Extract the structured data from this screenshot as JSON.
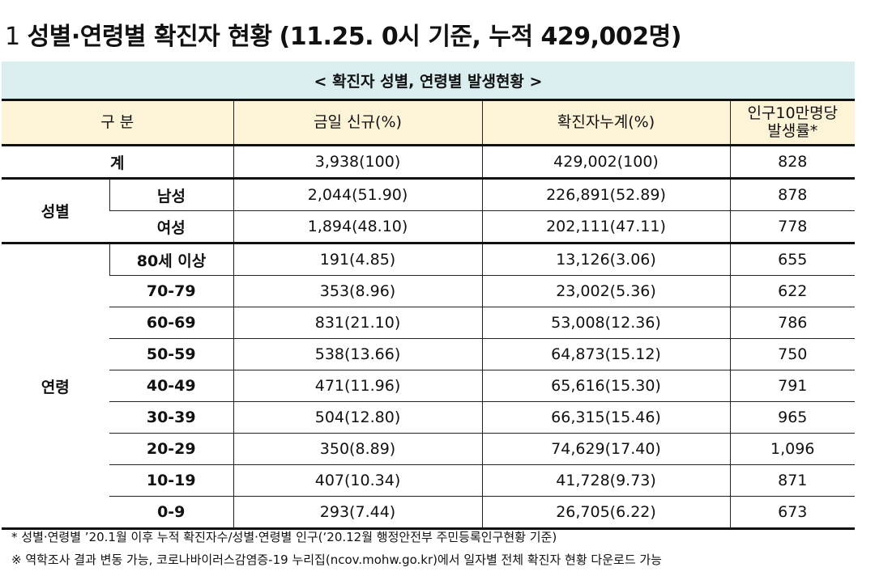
{
  "title": {
    "number": "1",
    "main": "성별·연령별 확진자 현황",
    "basis": "(11.25. 0시 기준, 누적 429,002명)"
  },
  "caption": "< 확진자 성별, 연령별 발생현황 >",
  "headers": {
    "category": "구 분",
    "today": "금일 신규(%)",
    "cumulative": "확진자누계(%)",
    "rate_line1": "인구10만명당",
    "rate_line2": "발생률*"
  },
  "total": {
    "label": "계",
    "today": "3,938(100)",
    "cumulative": "429,002(100)",
    "rate": "828"
  },
  "gender": {
    "group_label": "성별",
    "rows": [
      {
        "label": "남성",
        "today": "2,044(51.90)",
        "cumulative": "226,891(52.89)",
        "rate": "878"
      },
      {
        "label": "여성",
        "today": "1,894(48.10)",
        "cumulative": "202,111(47.11)",
        "rate": "778"
      }
    ]
  },
  "age": {
    "group_label": "연령",
    "rows": [
      {
        "label": "80세 이상",
        "today": "191(4.85)",
        "cumulative": "13,126(3.06)",
        "rate": "655"
      },
      {
        "label": "70-79",
        "today": "353(8.96)",
        "cumulative": "23,002(5.36)",
        "rate": "622"
      },
      {
        "label": "60-69",
        "today": "831(21.10)",
        "cumulative": "53,008(12.36)",
        "rate": "786"
      },
      {
        "label": "50-59",
        "today": "538(13.66)",
        "cumulative": "64,873(15.12)",
        "rate": "750"
      },
      {
        "label": "40-49",
        "today": "471(11.96)",
        "cumulative": "65,616(15.30)",
        "rate": "791"
      },
      {
        "label": "30-39",
        "today": "504(12.80)",
        "cumulative": "66,315(15.46)",
        "rate": "965"
      },
      {
        "label": "20-29",
        "today": "350(8.89)",
        "cumulative": "74,629(17.40)",
        "rate": "1,096"
      },
      {
        "label": "10-19",
        "today": "407(10.34)",
        "cumulative": "41,728(9.73)",
        "rate": "871"
      },
      {
        "label": "0-9",
        "today": "293(7.44)",
        "cumulative": "26,705(6.22)",
        "rate": "673"
      }
    ]
  },
  "notes": [
    "* 성별·연령별 ’20.1월 이후 누적 확진자수/성별·연령별 인구(‘20.12월 행정안전부 주민등록인구현황 기준)",
    "※ 역학조사 결과 변동 가능, 코로나바이러스감염증-19 누리집(ncov.mohw.go.kr)에서 일자별 전체 확진자 현황 다운로드 가능"
  ]
}
